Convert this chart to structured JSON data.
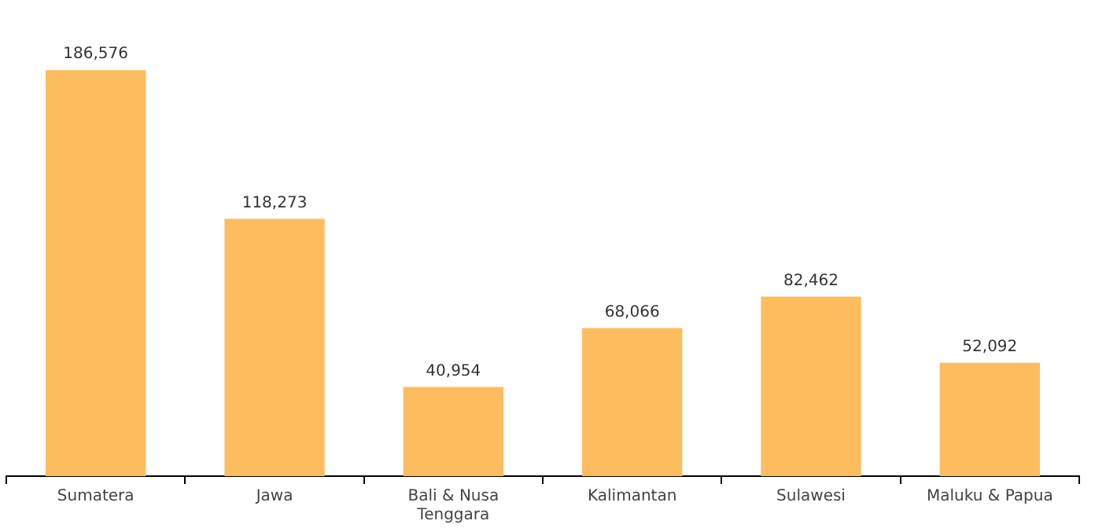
{
  "chart_data": {
    "type": "bar",
    "categories": [
      "Sumatera",
      "Jawa",
      "Bali & Nusa Tenggara",
      "Kalimantan",
      "Sulawesi",
      "Maluku & Papua"
    ],
    "values": [
      186576,
      118273,
      40954,
      68066,
      82462,
      52092
    ],
    "color": "#fdbd5f",
    "value_labels": [
      "186,576",
      "118,273",
      "40,954",
      "68,066",
      "82,462",
      "52,092"
    ],
    "grid": false,
    "legend": false,
    "tick_labels": "x"
  }
}
